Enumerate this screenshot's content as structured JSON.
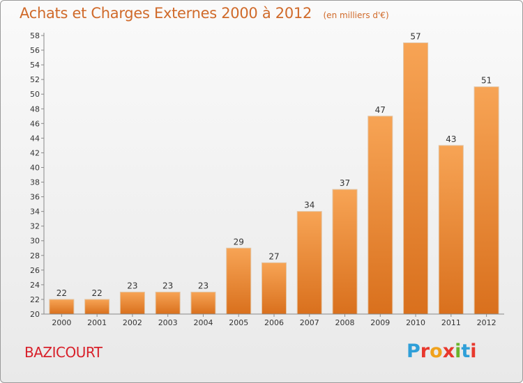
{
  "header": {
    "title": "Achats et Charges Externes 2000 à 2012",
    "subtitle": "(en milliers d'€)"
  },
  "footer": {
    "commune": "BAZICOURT",
    "logo_text": "Proxiti"
  },
  "colors": {
    "bar_top": "#f7a455",
    "bar_bottom": "#d9701d",
    "title": "#d06a2a",
    "commune": "#d8202a",
    "logo_letters": [
      "#2f9fd8",
      "#e8382d",
      "#f0a21c",
      "#e8382d",
      "#6bb42b",
      "#2f9fd8",
      "#e8382d"
    ]
  },
  "chart_data": {
    "type": "bar",
    "categories": [
      "2000",
      "2001",
      "2002",
      "2003",
      "2004",
      "2005",
      "2006",
      "2007",
      "2008",
      "2009",
      "2010",
      "2011",
      "2012"
    ],
    "values": [
      22,
      22,
      23,
      23,
      23,
      29,
      27,
      34,
      37,
      47,
      57,
      43,
      51
    ],
    "ylim": [
      20,
      58
    ],
    "yticks": [
      20,
      22,
      24,
      26,
      28,
      30,
      32,
      34,
      36,
      38,
      40,
      42,
      44,
      46,
      48,
      50,
      52,
      54,
      56,
      58
    ],
    "title": "Achats et Charges Externes 2000 à 2012",
    "subtitle": "(en milliers d'€)",
    "xlabel": "",
    "ylabel": "",
    "grid": false,
    "data_labels": true
  }
}
